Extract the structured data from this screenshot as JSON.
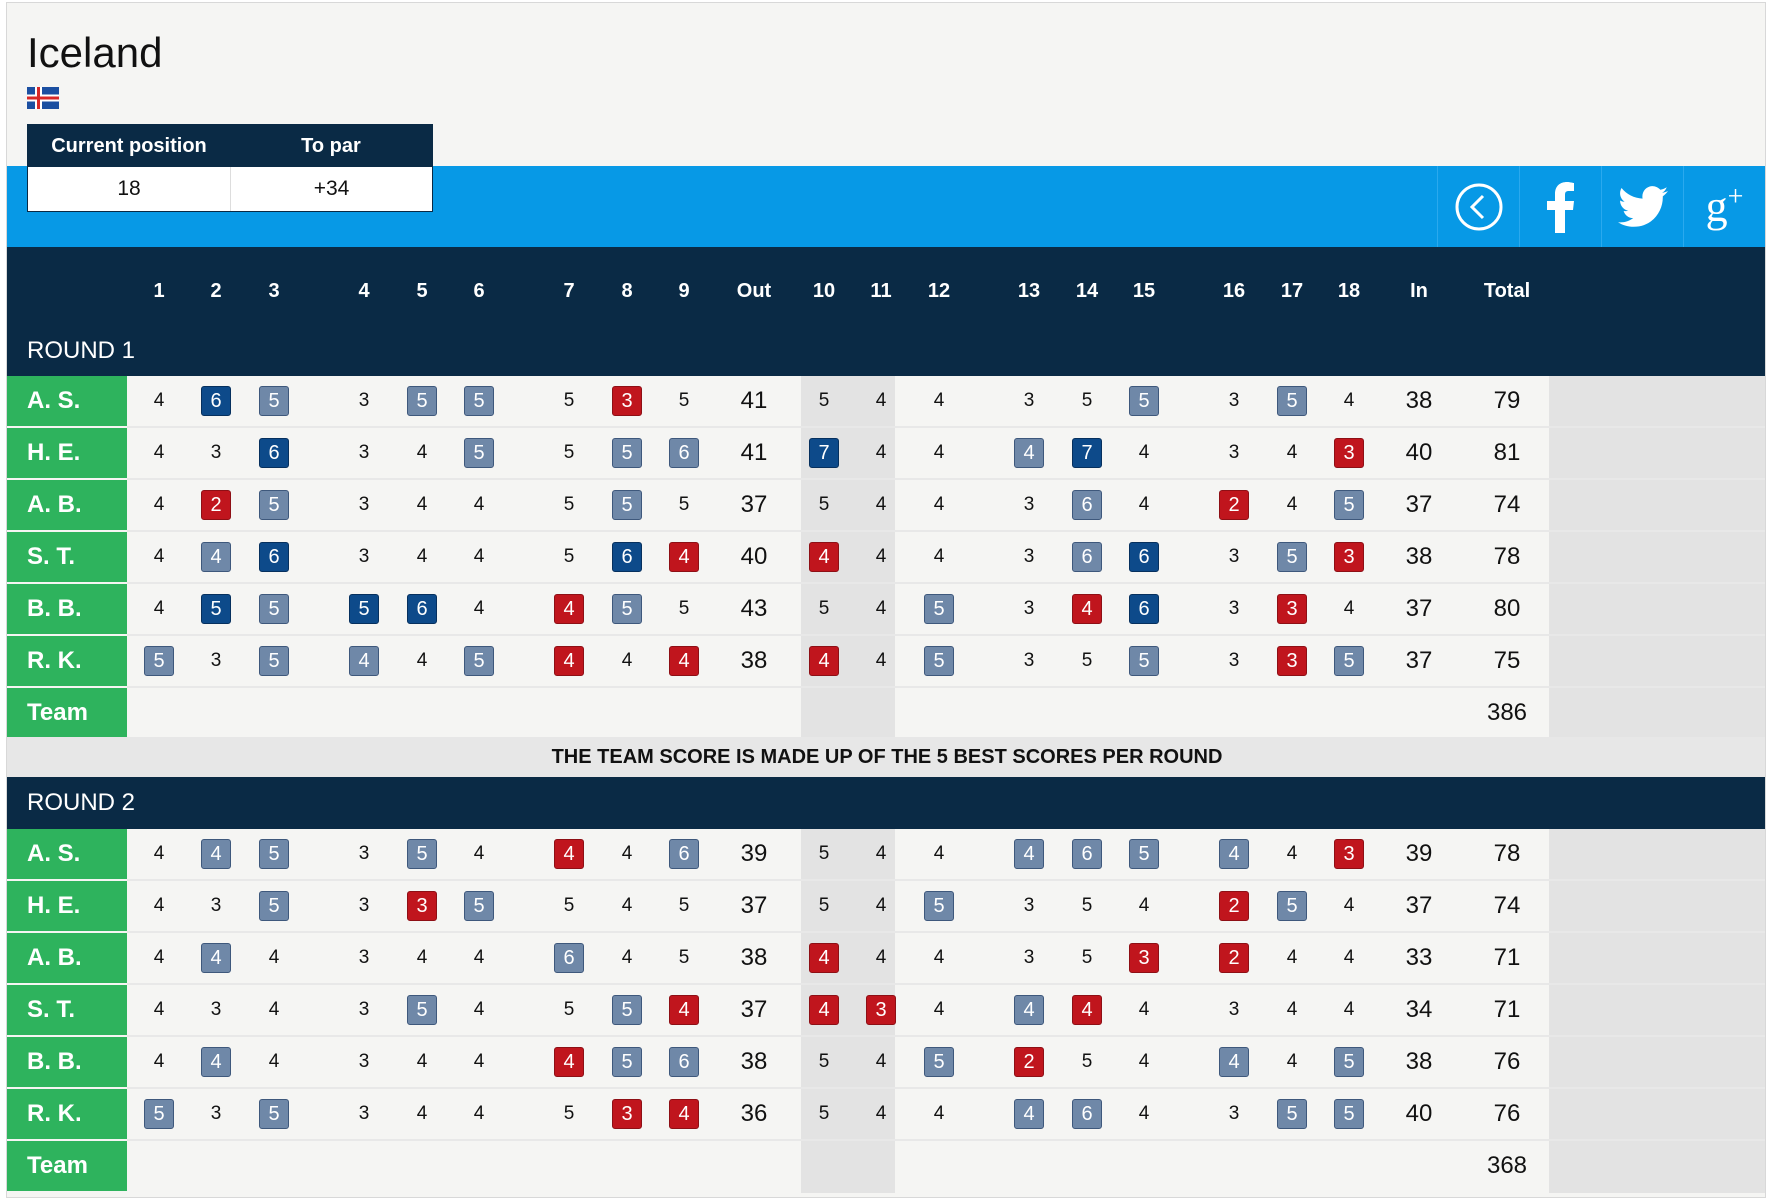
{
  "country": "Iceland",
  "position_table": {
    "headers": [
      "Current position",
      "To par"
    ],
    "values": [
      "18",
      "+34"
    ]
  },
  "social": [
    "back-icon",
    "facebook-icon",
    "twitter-icon",
    "google-plus-icon"
  ],
  "columns": [
    "1",
    "2",
    "3",
    "4",
    "5",
    "6",
    "7",
    "8",
    "9",
    "Out",
    "10",
    "11",
    "12",
    "13",
    "14",
    "15",
    "16",
    "17",
    "18",
    "In",
    "Total"
  ],
  "note": "THE TEAM SCORE IS MADE UP OF THE 5 BEST SCORES PER ROUND",
  "colors": {
    "birdie": "#c0151d",
    "bogey": "#6f88a8",
    "double_bogey": "#0d4a8a",
    "name_bg": "#2eb35d",
    "header_bg": "#0a2a45",
    "accent_bar": "#0799e6"
  },
  "rounds": [
    {
      "label": "ROUND 1",
      "team_total": "386",
      "players": [
        {
          "name": "A. S.",
          "scores": [
            "4",
            "6",
            "5",
            "3",
            "5",
            "5",
            "5",
            "3",
            "5"
          ],
          "styles": [
            "",
            "dbl",
            "bogey",
            "",
            "bogey",
            "bogey",
            "",
            "birdie",
            ""
          ],
          "out": "41",
          "back": [
            "5",
            "4",
            "4",
            "3",
            "5",
            "5",
            "3",
            "5",
            "4"
          ],
          "back_styles": [
            "",
            "",
            "",
            "",
            "",
            "bogey",
            "",
            "bogey",
            ""
          ],
          "in": "38",
          "total": "79"
        },
        {
          "name": "H. E.",
          "scores": [
            "4",
            "3",
            "6",
            "3",
            "4",
            "5",
            "5",
            "5",
            "6"
          ],
          "styles": [
            "",
            "",
            "dbl",
            "",
            "",
            "bogey",
            "",
            "bogey",
            "bogey"
          ],
          "out": "41",
          "back": [
            "7",
            "4",
            "4",
            "4",
            "7",
            "4",
            "3",
            "4",
            "3"
          ],
          "back_styles": [
            "dbl",
            "",
            "",
            "bogey",
            "dbl",
            "",
            "",
            "",
            "birdie"
          ],
          "in": "40",
          "total": "81"
        },
        {
          "name": "A. B.",
          "scores": [
            "4",
            "2",
            "5",
            "3",
            "4",
            "4",
            "5",
            "5",
            "5"
          ],
          "styles": [
            "",
            "birdie",
            "bogey",
            "",
            "",
            "",
            "",
            "bogey",
            ""
          ],
          "out": "37",
          "back": [
            "5",
            "4",
            "4",
            "3",
            "6",
            "4",
            "2",
            "4",
            "5"
          ],
          "back_styles": [
            "",
            "",
            "",
            "",
            "bogey",
            "",
            "birdie",
            "",
            "bogey"
          ],
          "in": "37",
          "total": "74"
        },
        {
          "name": "S. T.",
          "scores": [
            "4",
            "4",
            "6",
            "3",
            "4",
            "4",
            "5",
            "6",
            "4"
          ],
          "styles": [
            "",
            "bogey",
            "dbl",
            "",
            "",
            "",
            "",
            "dbl",
            "birdie"
          ],
          "out": "40",
          "back": [
            "4",
            "4",
            "4",
            "3",
            "6",
            "6",
            "3",
            "5",
            "3"
          ],
          "back_styles": [
            "birdie",
            "",
            "",
            "",
            "bogey",
            "dbl",
            "",
            "bogey",
            "birdie"
          ],
          "in": "38",
          "total": "78"
        },
        {
          "name": "B. B.",
          "scores": [
            "4",
            "5",
            "5",
            "5",
            "6",
            "4",
            "4",
            "5",
            "5"
          ],
          "styles": [
            "",
            "dbl",
            "bogey",
            "dbl",
            "dbl",
            "",
            "birdie",
            "bogey",
            ""
          ],
          "out": "43",
          "back": [
            "5",
            "4",
            "5",
            "3",
            "4",
            "6",
            "3",
            "3",
            "4"
          ],
          "back_styles": [
            "",
            "",
            "bogey",
            "",
            "birdie",
            "dbl",
            "",
            "birdie",
            ""
          ],
          "in": "37",
          "total": "80"
        },
        {
          "name": "R. K.",
          "scores": [
            "5",
            "3",
            "5",
            "4",
            "4",
            "5",
            "4",
            "4",
            "4"
          ],
          "styles": [
            "bogey",
            "",
            "bogey",
            "bogey",
            "",
            "bogey",
            "birdie",
            "",
            "birdie"
          ],
          "out": "38",
          "back": [
            "4",
            "4",
            "5",
            "3",
            "5",
            "5",
            "3",
            "3",
            "5"
          ],
          "back_styles": [
            "birdie",
            "",
            "bogey",
            "",
            "",
            "bogey",
            "",
            "birdie",
            "bogey"
          ],
          "in": "37",
          "total": "75"
        }
      ]
    },
    {
      "label": "ROUND 2",
      "team_total": "368",
      "players": [
        {
          "name": "A. S.",
          "scores": [
            "4",
            "4",
            "5",
            "3",
            "5",
            "4",
            "4",
            "4",
            "6"
          ],
          "styles": [
            "",
            "bogey",
            "bogey",
            "",
            "bogey",
            "",
            "birdie",
            "",
            "bogey"
          ],
          "out": "39",
          "back": [
            "5",
            "4",
            "4",
            "4",
            "6",
            "5",
            "4",
            "4",
            "3"
          ],
          "back_styles": [
            "",
            "",
            "",
            "bogey",
            "bogey",
            "bogey",
            "bogey",
            "",
            "birdie"
          ],
          "in": "39",
          "total": "78"
        },
        {
          "name": "H. E.",
          "scores": [
            "4",
            "3",
            "5",
            "3",
            "3",
            "5",
            "5",
            "4",
            "5"
          ],
          "styles": [
            "",
            "",
            "bogey",
            "",
            "birdie",
            "bogey",
            "",
            "",
            ""
          ],
          "out": "37",
          "back": [
            "5",
            "4",
            "5",
            "3",
            "5",
            "4",
            "2",
            "5",
            "4"
          ],
          "back_styles": [
            "",
            "",
            "bogey",
            "",
            "",
            "",
            "birdie",
            "bogey",
            ""
          ],
          "in": "37",
          "total": "74"
        },
        {
          "name": "A. B.",
          "scores": [
            "4",
            "4",
            "4",
            "3",
            "4",
            "4",
            "6",
            "4",
            "5"
          ],
          "styles": [
            "",
            "bogey",
            "",
            "",
            "",
            "",
            "bogey",
            "",
            ""
          ],
          "out": "38",
          "back": [
            "4",
            "4",
            "4",
            "3",
            "5",
            "3",
            "2",
            "4",
            "4"
          ],
          "back_styles": [
            "birdie",
            "",
            "",
            "",
            "",
            "birdie",
            "birdie",
            "",
            ""
          ],
          "in": "33",
          "total": "71"
        },
        {
          "name": "S. T.",
          "scores": [
            "4",
            "3",
            "4",
            "3",
            "5",
            "4",
            "5",
            "5",
            "4"
          ],
          "styles": [
            "",
            "",
            "",
            "",
            "bogey",
            "",
            "",
            "bogey",
            "birdie"
          ],
          "out": "37",
          "back": [
            "4",
            "3",
            "4",
            "4",
            "4",
            "4",
            "3",
            "4",
            "4"
          ],
          "back_styles": [
            "birdie",
            "birdie",
            "",
            "bogey",
            "birdie",
            "",
            "",
            "",
            ""
          ],
          "in": "34",
          "total": "71"
        },
        {
          "name": "B. B.",
          "scores": [
            "4",
            "4",
            "4",
            "3",
            "4",
            "4",
            "4",
            "5",
            "6"
          ],
          "styles": [
            "",
            "bogey",
            "",
            "",
            "",
            "",
            "birdie",
            "bogey",
            "bogey"
          ],
          "out": "38",
          "back": [
            "5",
            "4",
            "5",
            "2",
            "5",
            "4",
            "4",
            "4",
            "5"
          ],
          "back_styles": [
            "",
            "",
            "bogey",
            "birdie",
            "",
            "",
            "bogey",
            "",
            "bogey"
          ],
          "in": "38",
          "total": "76"
        },
        {
          "name": "R. K.",
          "scores": [
            "5",
            "3",
            "5",
            "3",
            "4",
            "4",
            "5",
            "3",
            "4"
          ],
          "styles": [
            "bogey",
            "",
            "bogey",
            "",
            "",
            "",
            "",
            "birdie",
            "birdie"
          ],
          "out": "36",
          "back": [
            "5",
            "4",
            "4",
            "4",
            "6",
            "4",
            "3",
            "5",
            "5"
          ],
          "back_styles": [
            "",
            "",
            "",
            "bogey",
            "bogey",
            "",
            "",
            "bogey",
            "bogey"
          ],
          "in": "40",
          "total": "76"
        }
      ]
    }
  ],
  "team_label": "Team"
}
